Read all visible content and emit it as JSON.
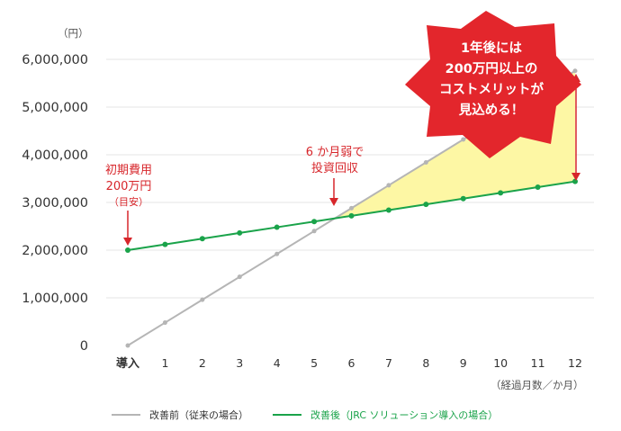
{
  "chart_data": {
    "type": "line",
    "y_unit": "（円）",
    "x_unit": "（経過月数／か月）",
    "categories": [
      "導入",
      "1",
      "2",
      "3",
      "4",
      "5",
      "6",
      "7",
      "8",
      "9",
      "10",
      "11",
      "12"
    ],
    "y_ticks": [
      "6,000,000",
      "5,000,000",
      "4,000,000",
      "3,000,000",
      "2,000,000",
      "1,000,000",
      "0"
    ],
    "ylim": [
      0,
      6000000
    ],
    "grid": true,
    "legend_position": "bottom",
    "series": [
      {
        "name": "改善前（従来の場合）",
        "color": "#b5b5b5",
        "values": [
          0,
          480000,
          960000,
          1440000,
          1920000,
          2400000,
          2880000,
          3360000,
          3840000,
          4320000,
          4800000,
          5280000,
          5760000
        ]
      },
      {
        "name": "改善後（JRC ソリューション導入の場合）",
        "color": "#1aa34a",
        "values": [
          2000000,
          2120000,
          2240000,
          2360000,
          2480000,
          2600000,
          2720000,
          2840000,
          2960000,
          3080000,
          3200000,
          3320000,
          3440000
        ]
      }
    ],
    "annotations": {
      "initial_cost": [
        "初期費用",
        "200万円"
      ],
      "initial_cost_note": "（目安）",
      "payback": [
        "6 か月弱で",
        "投資回収"
      ],
      "savings_burst": [
        "1年後には",
        "200万円以上の",
        "コストメリットが",
        "見込める！"
      ]
    },
    "colors": {
      "accent_red": "#d7262b",
      "savings_fill": "#fdf7a4",
      "grid": "#e6e6e6"
    }
  }
}
